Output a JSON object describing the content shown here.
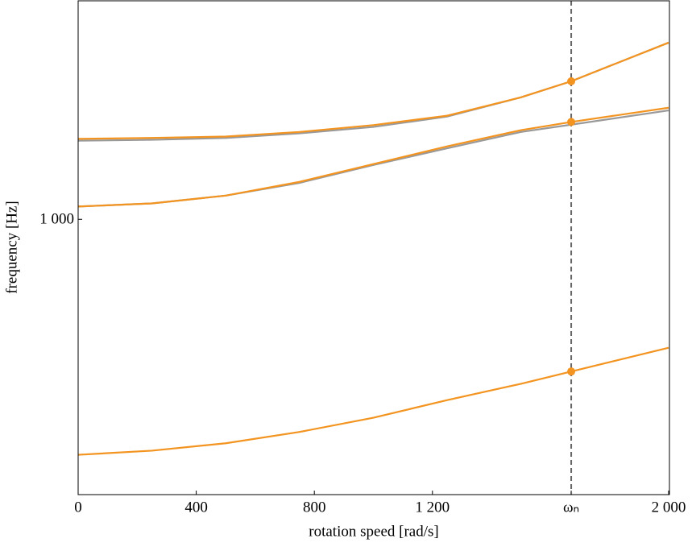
{
  "chart_data": {
    "type": "line",
    "xlabel": "rotation speed [rad/s]",
    "ylabel": "frequency [Hz]",
    "x": [
      0,
      250,
      500,
      750,
      1000,
      1250,
      1500,
      1670,
      2000
    ],
    "series": [
      {
        "color": "#999999",
        "values": [
          1024,
          1030,
          1045,
          1070,
          1106,
          1141,
          1176,
          1192,
          1224
        ]
      },
      {
        "color": "#999999",
        "values": [
          1157,
          1159,
          1163,
          1173,
          1187,
          1210,
          1254,
          1292,
          1388
        ]
      },
      {
        "color": "#f39420",
        "markers": true,
        "values": [
          646,
          651,
          660,
          674,
          692,
          715,
          737,
          754,
          788
        ]
      },
      {
        "color": "#f39420",
        "markers": true,
        "values": [
          1024,
          1030,
          1045,
          1072,
          1108,
          1145,
          1180,
          1198,
          1230
        ]
      },
      {
        "color": "#f39420",
        "markers": true,
        "values": [
          1161,
          1163,
          1166,
          1176,
          1191,
          1212,
          1254,
          1292,
          1388
        ]
      }
    ],
    "xlim": [
      0,
      2000
    ],
    "xticks": [
      0,
      400,
      800,
      {
        "value": 1200,
        "label": "1 200"
      },
      {
        "value": 1670,
        "label": "ωₙ"
      },
      {
        "value": 2000,
        "label": "2 000"
      }
    ],
    "ylim": [
      600,
      1500
    ],
    "log_y": true,
    "yticks": [
      {
        "value": 1000,
        "label": "1 000"
      }
    ],
    "reference_line_color": "#666666"
  }
}
